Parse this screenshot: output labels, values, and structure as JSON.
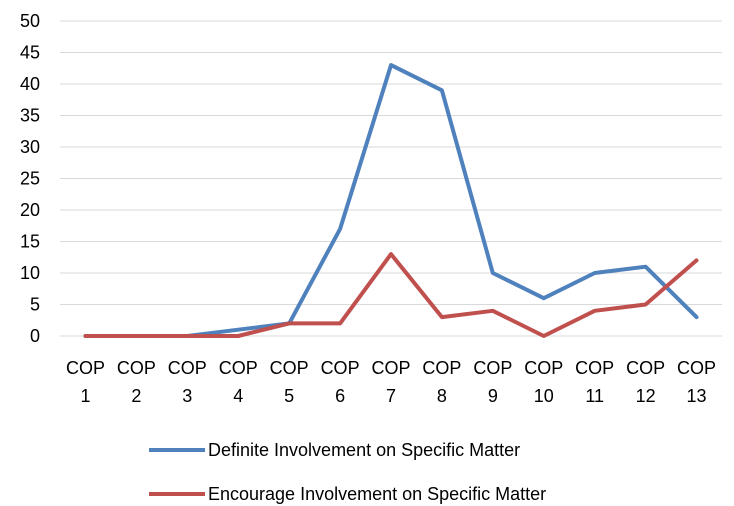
{
  "chart_data": {
    "type": "line",
    "categories": [
      [
        "COP",
        "1"
      ],
      [
        "COP",
        "2"
      ],
      [
        "COP",
        "3"
      ],
      [
        "COP",
        "4"
      ],
      [
        "COP",
        "5"
      ],
      [
        "COP",
        "6"
      ],
      [
        "COP",
        "7"
      ],
      [
        "COP",
        "8"
      ],
      [
        "COP",
        "9"
      ],
      [
        "COP",
        "10"
      ],
      [
        "COP",
        "11"
      ],
      [
        "COP",
        "12"
      ],
      [
        "COP",
        "13"
      ]
    ],
    "series": [
      {
        "name": "Definite Involvement on Specific Matter",
        "color": "#4f81bd",
        "values": [
          0,
          0,
          0,
          1,
          2,
          17,
          43,
          39,
          10,
          6,
          10,
          11,
          3
        ]
      },
      {
        "name": "Encourage Involvement on Specific Matter",
        "color": "#c0504d",
        "values": [
          0,
          0,
          0,
          0,
          2,
          2,
          13,
          3,
          4,
          0,
          4,
          5,
          12
        ]
      }
    ],
    "ylim": [
      0,
      50
    ],
    "yticks": [
      0,
      5,
      10,
      15,
      20,
      25,
      30,
      35,
      40,
      45,
      50
    ],
    "grid": "horizontal",
    "grid_color": "#d9d9d9",
    "legend_position": "bottom"
  }
}
